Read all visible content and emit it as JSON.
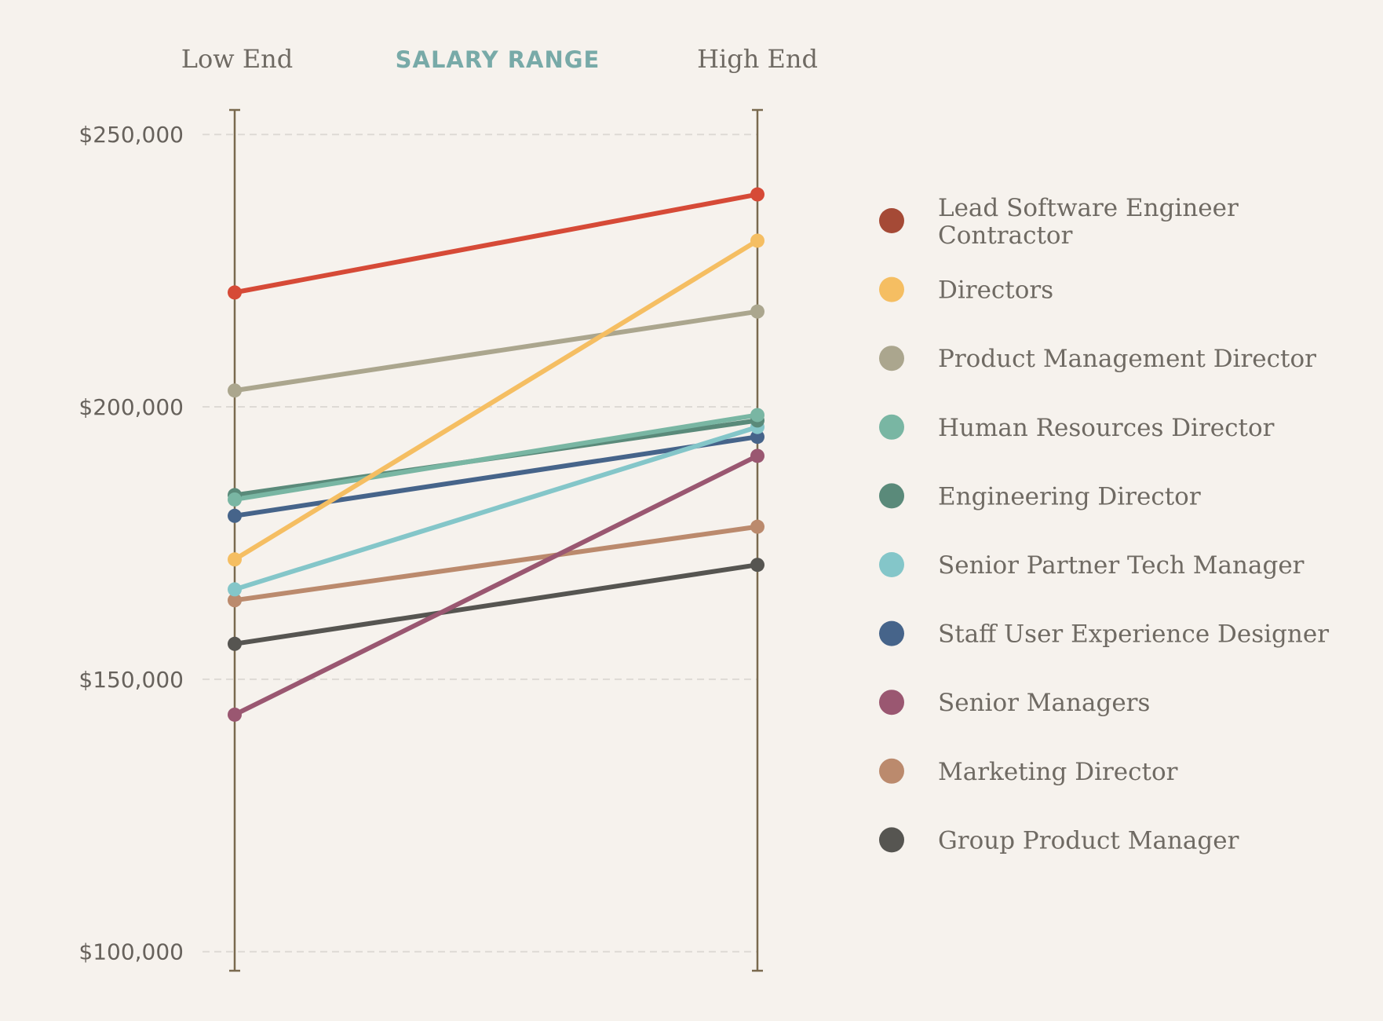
{
  "chart_data": {
    "type": "line",
    "title": "SALARY RANGE",
    "x": [
      "Low End",
      "High End"
    ],
    "yticks": [
      "$100,000",
      "$150,000",
      "$200,000",
      "$250,000"
    ],
    "ytick_values": [
      100000,
      150000,
      200000,
      250000
    ],
    "ylim": [
      96500,
      254500
    ],
    "grid": true,
    "legend_position": "right",
    "series": [
      {
        "name": "Lead Software Engineer Contractor",
        "values": [
          221000,
          239000
        ],
        "line_color": "#d64a37",
        "dot_color": "#a54a36"
      },
      {
        "name": "Directors",
        "values": [
          172000,
          230500
        ],
        "line_color": "#f5be62",
        "dot_color": "#f5be62"
      },
      {
        "name": "Product Management Director",
        "values": [
          203000,
          217500
        ],
        "line_color": "#aba68e",
        "dot_color": "#aba68e"
      },
      {
        "name": "Human Resources Director",
        "values": [
          183000,
          198500
        ],
        "line_color": "#79b6a3",
        "dot_color": "#79b6a3"
      },
      {
        "name": "Engineering Director",
        "values": [
          183800,
          197500
        ],
        "line_color": "#5a8a7a",
        "dot_color": "#5a8a7a"
      },
      {
        "name": "Senior Partner Tech Manager",
        "values": [
          166500,
          196300
        ],
        "line_color": "#84c6c9",
        "dot_color": "#84c6c9"
      },
      {
        "name": "Staff User Experience Designer",
        "values": [
          180000,
          194500
        ],
        "line_color": "#46648a",
        "dot_color": "#46648a"
      },
      {
        "name": "Senior Managers",
        "values": [
          143500,
          191000
        ],
        "line_color": "#9a5771",
        "dot_color": "#9a5771"
      },
      {
        "name": "Marketing Director",
        "values": [
          164500,
          178000
        ],
        "line_color": "#bb8a6d",
        "dot_color": "#bb8a6d"
      },
      {
        "name": "Group Product Manager",
        "values": [
          156500,
          171000
        ],
        "line_color": "#565551",
        "dot_color": "#565551"
      }
    ],
    "legend_order": [
      "Lead Software Engineer Contractor",
      "Directors",
      "Product Management Director",
      "Human Resources Director",
      "Engineering Director",
      "Senior Partner Tech Manager",
      "Staff User Experience Designer",
      "Senior Managers",
      "Marketing Director",
      "Group Product Manager"
    ],
    "legend_lines": {
      "Lead Software Engineer Contractor": [
        "Lead Software Engineer",
        "Contractor"
      ]
    }
  },
  "colors": {
    "background": "#f6f2ed",
    "axis": "#7a6a4f",
    "grid": "#dedad5"
  }
}
